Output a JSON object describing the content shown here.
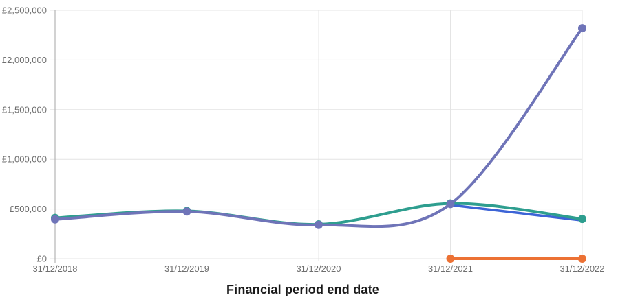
{
  "chart_data": {
    "type": "line",
    "title": "",
    "xlabel": "Financial period end date",
    "ylabel": "",
    "categories": [
      "31/12/2018",
      "31/12/2019",
      "31/12/2020",
      "31/12/2021",
      "31/12/2022"
    ],
    "y_ticks": [
      {
        "label": "£0",
        "value": 0
      },
      {
        "label": "£500,000",
        "value": 500000
      },
      {
        "label": "£1,000,000",
        "value": 1000000
      },
      {
        "label": "£1,500,000",
        "value": 1500000
      },
      {
        "label": "£2,000,000",
        "value": 2000000
      },
      {
        "label": "£2,500,000",
        "value": 2500000
      }
    ],
    "ylim": [
      0,
      2500000
    ],
    "grid": true,
    "legend": "none",
    "curve": "smooth",
    "series": [
      {
        "name": "blue-series",
        "color": "#3D64D6",
        "line_width": 3.5,
        "markers": false,
        "values": [
          null,
          null,
          null,
          540000,
          385000
        ]
      },
      {
        "name": "teal-series",
        "color": "#2E9E8F",
        "line_width": 4,
        "markers": true,
        "values": [
          410000,
          480000,
          345000,
          555000,
          400000
        ]
      },
      {
        "name": "purple-series",
        "color": "#6F74B8",
        "line_width": 4,
        "markers": true,
        "values": [
          395000,
          475000,
          340000,
          550000,
          2320000
        ]
      },
      {
        "name": "orange-series",
        "color": "#EC7134",
        "line_width": 4,
        "markers": true,
        "values": [
          null,
          null,
          null,
          0,
          0
        ]
      }
    ],
    "style": {
      "grid_color": "#e4e4e4",
      "axis_color": "#b3b3b3",
      "tick_label_color": "#6e6e6e",
      "marker_radius": 6
    }
  }
}
